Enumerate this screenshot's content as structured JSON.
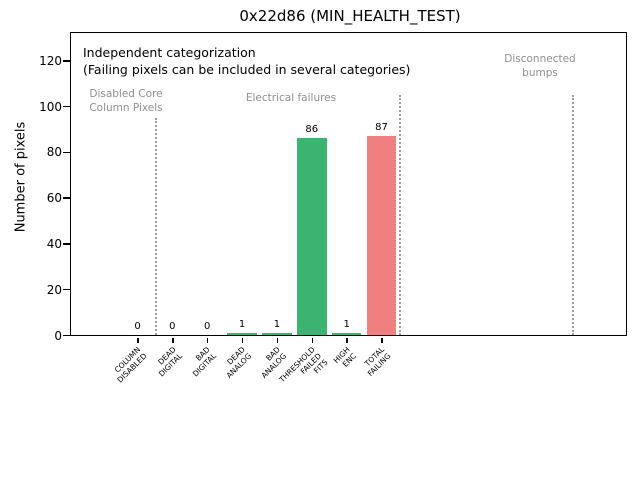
{
  "title": "0x22d86 (MIN_HEALTH_TEST)",
  "colors": {
    "bar_green": "#3cb371",
    "bar_red": "#f08080",
    "axis": "#000000",
    "gray_text": "#8f8f8f",
    "separator_gray": "#9b9b9b"
  },
  "chart_data": {
    "type": "bar",
    "title": "0x22d86 (MIN_HEALTH_TEST)",
    "xlabel": "",
    "ylabel": "Number of pixels",
    "categories": [
      "COLUMN\nDISABLED",
      "DEAD\nDIGITAL",
      "BAD\nDIGITAL",
      "DEAD\nANALOG",
      "BAD\nANALOG",
      "THRESHOLD\nFAILED\nFITS",
      "HIGH\nENC",
      "TOTAL\nFAILING"
    ],
    "values": [
      0,
      0,
      0,
      1,
      1,
      86,
      1,
      87
    ],
    "bar_value_labels": [
      "0",
      "0",
      "0",
      "1",
      "1",
      "86",
      "1",
      "87"
    ],
    "bar_colors": [
      "#3cb371",
      "#3cb371",
      "#3cb371",
      "#3cb371",
      "#3cb371",
      "#3cb371",
      "#3cb371",
      "#f08080"
    ],
    "yticks": [
      0,
      20,
      40,
      60,
      80,
      100,
      120
    ],
    "ylim": [
      0,
      132
    ],
    "xlim": [
      -1.87,
      14.03
    ],
    "grid": false,
    "legend": null,
    "separators": [
      {
        "x": 0.52,
        "y_top": 95
      },
      {
        "x": 7.52,
        "y_top": 105
      },
      {
        "x": 12.48,
        "y_top": 105
      }
    ],
    "annotations": [
      {
        "text": "Independent categorization\n(Failing pixels can be included in several categories)",
        "color": "#000000"
      },
      {
        "text": "Disabled Core\nColumn Pixels",
        "color": "#8f8f8f"
      },
      {
        "text": "Electrical failures",
        "color": "#8f8f8f"
      },
      {
        "text": "Disconnected\nbumps",
        "color": "#8f8f8f"
      }
    ]
  }
}
